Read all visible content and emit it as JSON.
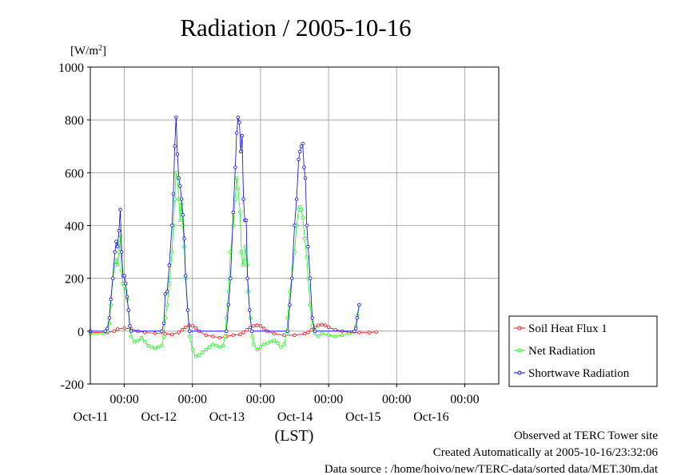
{
  "chart_data": {
    "type": "line",
    "title": "Radiation / 2005-10-16",
    "ylabel": "[W/m2]",
    "ylabel_parts": {
      "base": "[W/m",
      "sup": "2",
      "close": "]"
    },
    "xlabel": "(LST)",
    "ylim": [
      -200,
      1000
    ],
    "yticks": [
      1000,
      800,
      600,
      400,
      200,
      0,
      -200
    ],
    "xlim_days": [
      10.5,
      16.5
    ],
    "xticks": [
      {
        "day": 11,
        "time": "00:00",
        "date": "Oct-11"
      },
      {
        "day": 12,
        "time": "00:00",
        "date": "Oct-12"
      },
      {
        "day": 13,
        "time": "00:00",
        "date": "Oct-13"
      },
      {
        "day": 14,
        "time": "00:00",
        "date": "Oct-14"
      },
      {
        "day": 15,
        "time": "00:00",
        "date": "Oct-15"
      },
      {
        "day": 16,
        "time": "00:00",
        "date": "Oct-16"
      }
    ],
    "grid": true,
    "legend_position": "right",
    "series": [
      {
        "name": "Soil Heat Flux 1",
        "color": "#ff0000",
        "points": [
          [
            10.5,
            -5
          ],
          [
            10.75,
            -5
          ],
          [
            10.85,
            0
          ],
          [
            10.9,
            8
          ],
          [
            11.0,
            12
          ],
          [
            11.1,
            8
          ],
          [
            11.2,
            0
          ],
          [
            11.3,
            -5
          ],
          [
            11.45,
            -8
          ],
          [
            11.6,
            -10
          ],
          [
            11.7,
            -12
          ],
          [
            11.8,
            -5
          ],
          [
            11.85,
            5
          ],
          [
            11.9,
            15
          ],
          [
            11.95,
            22
          ],
          [
            12.0,
            20
          ],
          [
            12.05,
            12
          ],
          [
            12.1,
            0
          ],
          [
            12.2,
            -15
          ],
          [
            12.3,
            -20
          ],
          [
            12.4,
            -25
          ],
          [
            12.5,
            -20
          ],
          [
            12.6,
            -15
          ],
          [
            12.7,
            -12
          ],
          [
            12.75,
            -5
          ],
          [
            12.8,
            5
          ],
          [
            12.85,
            15
          ],
          [
            12.9,
            20
          ],
          [
            12.95,
            22
          ],
          [
            13.0,
            20
          ],
          [
            13.05,
            10
          ],
          [
            13.1,
            0
          ],
          [
            13.2,
            -10
          ],
          [
            13.35,
            -15
          ],
          [
            13.5,
            -15
          ],
          [
            13.65,
            -10
          ],
          [
            13.7,
            -5
          ],
          [
            13.75,
            5
          ],
          [
            13.8,
            15
          ],
          [
            13.85,
            22
          ],
          [
            13.9,
            25
          ],
          [
            13.95,
            22
          ],
          [
            14.0,
            15
          ],
          [
            14.1,
            5
          ],
          [
            14.2,
            0
          ],
          [
            14.3,
            -5
          ],
          [
            14.45,
            -5
          ],
          [
            14.6,
            -5
          ],
          [
            14.7,
            -3
          ]
        ]
      },
      {
        "name": "Net Radiation",
        "color": "#00ff00",
        "points": [
          [
            10.5,
            -10
          ],
          [
            10.7,
            -10
          ],
          [
            10.75,
            0
          ],
          [
            10.78,
            30
          ],
          [
            10.8,
            100
          ],
          [
            10.83,
            200
          ],
          [
            10.86,
            250
          ],
          [
            10.88,
            270
          ],
          [
            10.9,
            250
          ],
          [
            10.92,
            300
          ],
          [
            10.94,
            360
          ],
          [
            10.96,
            230
          ],
          [
            10.98,
            180
          ],
          [
            11.0,
            170
          ],
          [
            11.02,
            150
          ],
          [
            11.04,
            120
          ],
          [
            11.06,
            80
          ],
          [
            11.08,
            20
          ],
          [
            11.1,
            -20
          ],
          [
            11.15,
            -40
          ],
          [
            11.2,
            -35
          ],
          [
            11.25,
            -25
          ],
          [
            11.3,
            -40
          ],
          [
            11.35,
            -55
          ],
          [
            11.4,
            -60
          ],
          [
            11.45,
            -65
          ],
          [
            11.5,
            -60
          ],
          [
            11.55,
            -55
          ],
          [
            11.58,
            -20
          ],
          [
            11.6,
            50
          ],
          [
            11.63,
            100
          ],
          [
            11.66,
            180
          ],
          [
            11.7,
            300
          ],
          [
            11.72,
            400
          ],
          [
            11.74,
            500
          ],
          [
            11.76,
            600
          ],
          [
            11.78,
            580
          ],
          [
            11.8,
            500
          ],
          [
            11.82,
            420
          ],
          [
            11.84,
            480
          ],
          [
            11.86,
            400
          ],
          [
            11.88,
            320
          ],
          [
            11.9,
            200
          ],
          [
            11.93,
            80
          ],
          [
            11.96,
            -20
          ],
          [
            12.0,
            -70
          ],
          [
            12.05,
            -95
          ],
          [
            12.1,
            -90
          ],
          [
            12.15,
            -80
          ],
          [
            12.2,
            -70
          ],
          [
            12.25,
            -60
          ],
          [
            12.3,
            -50
          ],
          [
            12.35,
            -55
          ],
          [
            12.4,
            -60
          ],
          [
            12.45,
            -55
          ],
          [
            12.48,
            -20
          ],
          [
            12.5,
            50
          ],
          [
            12.53,
            150
          ],
          [
            12.56,
            300
          ],
          [
            12.6,
            400
          ],
          [
            12.63,
            500
          ],
          [
            12.65,
            580
          ],
          [
            12.67,
            540
          ],
          [
            12.7,
            450
          ],
          [
            12.72,
            300
          ],
          [
            12.74,
            250
          ],
          [
            12.76,
            270
          ],
          [
            12.78,
            320
          ],
          [
            12.8,
            250
          ],
          [
            12.82,
            150
          ],
          [
            12.85,
            50
          ],
          [
            12.88,
            -20
          ],
          [
            12.9,
            -50
          ],
          [
            12.95,
            -70
          ],
          [
            13.0,
            -60
          ],
          [
            13.05,
            -50
          ],
          [
            13.1,
            -45
          ],
          [
            13.15,
            -40
          ],
          [
            13.2,
            -35
          ],
          [
            13.25,
            -45
          ],
          [
            13.3,
            -60
          ],
          [
            13.35,
            -50
          ],
          [
            13.38,
            -10
          ],
          [
            13.4,
            50
          ],
          [
            13.43,
            150
          ],
          [
            13.46,
            200
          ],
          [
            13.5,
            300
          ],
          [
            13.53,
            400
          ],
          [
            13.56,
            460
          ],
          [
            13.58,
            470
          ],
          [
            13.6,
            460
          ],
          [
            13.62,
            430
          ],
          [
            13.65,
            350
          ],
          [
            13.68,
            280
          ],
          [
            13.7,
            200
          ],
          [
            13.73,
            100
          ],
          [
            13.76,
            20
          ],
          [
            13.8,
            -10
          ],
          [
            13.85,
            -20
          ],
          [
            13.9,
            -10
          ],
          [
            14.0,
            -15
          ],
          [
            14.1,
            -20
          ],
          [
            14.2,
            -15
          ],
          [
            14.3,
            -10
          ],
          [
            14.38,
            -5
          ],
          [
            14.4,
            20
          ],
          [
            14.42,
            60
          ],
          [
            14.45,
            100
          ]
        ]
      },
      {
        "name": "Shortwave Radiation",
        "color": "#0000ff",
        "points": [
          [
            10.5,
            0
          ],
          [
            10.72,
            0
          ],
          [
            10.75,
            10
          ],
          [
            10.78,
            50
          ],
          [
            10.8,
            120
          ],
          [
            10.83,
            200
          ],
          [
            10.86,
            300
          ],
          [
            10.88,
            340
          ],
          [
            10.9,
            320
          ],
          [
            10.92,
            380
          ],
          [
            10.94,
            460
          ],
          [
            10.96,
            300
          ],
          [
            10.98,
            210
          ],
          [
            11.0,
            210
          ],
          [
            11.02,
            180
          ],
          [
            11.04,
            130
          ],
          [
            11.06,
            80
          ],
          [
            11.08,
            20
          ],
          [
            11.1,
            0
          ],
          [
            11.55,
            0
          ],
          [
            11.58,
            30
          ],
          [
            11.6,
            140
          ],
          [
            11.63,
            150
          ],
          [
            11.66,
            250
          ],
          [
            11.7,
            400
          ],
          [
            11.72,
            520
          ],
          [
            11.74,
            700
          ],
          [
            11.76,
            810
          ],
          [
            11.78,
            670
          ],
          [
            11.8,
            580
          ],
          [
            11.82,
            550
          ],
          [
            11.84,
            500
          ],
          [
            11.86,
            440
          ],
          [
            11.88,
            350
          ],
          [
            11.9,
            210
          ],
          [
            11.93,
            80
          ],
          [
            11.96,
            0
          ],
          [
            12.5,
            0
          ],
          [
            12.53,
            100
          ],
          [
            12.56,
            200
          ],
          [
            12.6,
            450
          ],
          [
            12.63,
            620
          ],
          [
            12.65,
            750
          ],
          [
            12.67,
            810
          ],
          [
            12.69,
            790
          ],
          [
            12.71,
            680
          ],
          [
            12.73,
            740
          ],
          [
            12.75,
            500
          ],
          [
            12.77,
            420
          ],
          [
            12.79,
            420
          ],
          [
            12.81,
            200
          ],
          [
            12.84,
            80
          ],
          [
            12.87,
            0
          ],
          [
            13.4,
            0
          ],
          [
            13.43,
            100
          ],
          [
            13.46,
            200
          ],
          [
            13.5,
            400
          ],
          [
            13.53,
            500
          ],
          [
            13.56,
            650
          ],
          [
            13.58,
            680
          ],
          [
            13.6,
            700
          ],
          [
            13.62,
            710
          ],
          [
            13.64,
            620
          ],
          [
            13.66,
            580
          ],
          [
            13.68,
            400
          ],
          [
            13.7,
            320
          ],
          [
            13.73,
            200
          ],
          [
            13.76,
            50
          ],
          [
            13.8,
            0
          ],
          [
            14.38,
            0
          ],
          [
            14.4,
            10
          ],
          [
            14.42,
            50
          ],
          [
            14.45,
            100
          ]
        ]
      }
    ],
    "legend": [
      "Soil Heat Flux 1",
      "Net Radiation",
      "Shortwave Radiation"
    ],
    "annotations": {
      "observed": "Observed at TERC Tower site",
      "created": "Created Automatically at 2005-10-16/23:32:06",
      "source": "Data source : /home/hoivo/new/TERC-data/sorted  data/MET.30m.dat"
    }
  }
}
